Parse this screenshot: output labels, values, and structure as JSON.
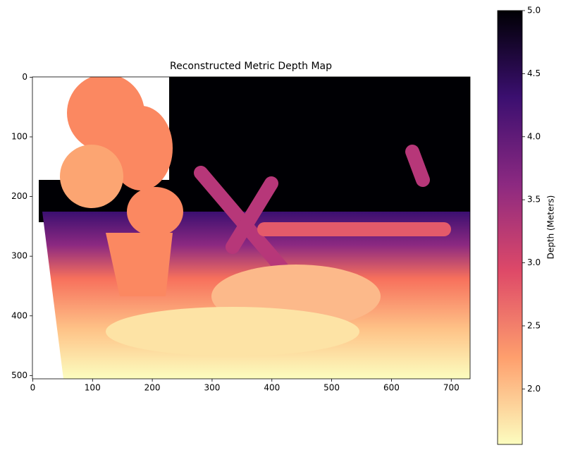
{
  "chart_data": {
    "type": "image",
    "title": "Reconstructed Metric Depth Map",
    "xlim": [
      -0.5,
      731.5
    ],
    "xticks": [
      0,
      100,
      200,
      300,
      400,
      500,
      600,
      700
    ],
    "ylim": [
      505.5,
      -0.5
    ],
    "yticks": [
      0,
      100,
      200,
      300,
      400,
      500
    ],
    "colorbar": {
      "label": "Depth (Meters)",
      "clim": [
        1.56,
        5.0
      ],
      "ticks": [
        {
          "value": 2.0,
          "label": "2.0"
        },
        {
          "value": 2.5,
          "label": "2.5"
        },
        {
          "value": 3.0,
          "label": "3.0"
        },
        {
          "value": 3.5,
          "label": "3.5"
        },
        {
          "value": 4.0,
          "label": "4.0"
        },
        {
          "value": 4.5,
          "label": "4.5"
        },
        {
          "value": 5.0,
          "label": "5.0"
        }
      ],
      "colors": [
        "#fcfdbf",
        "#fe9f6d",
        "#de4968",
        "#8c2981",
        "#3b0f70",
        "#000004"
      ]
    }
  }
}
